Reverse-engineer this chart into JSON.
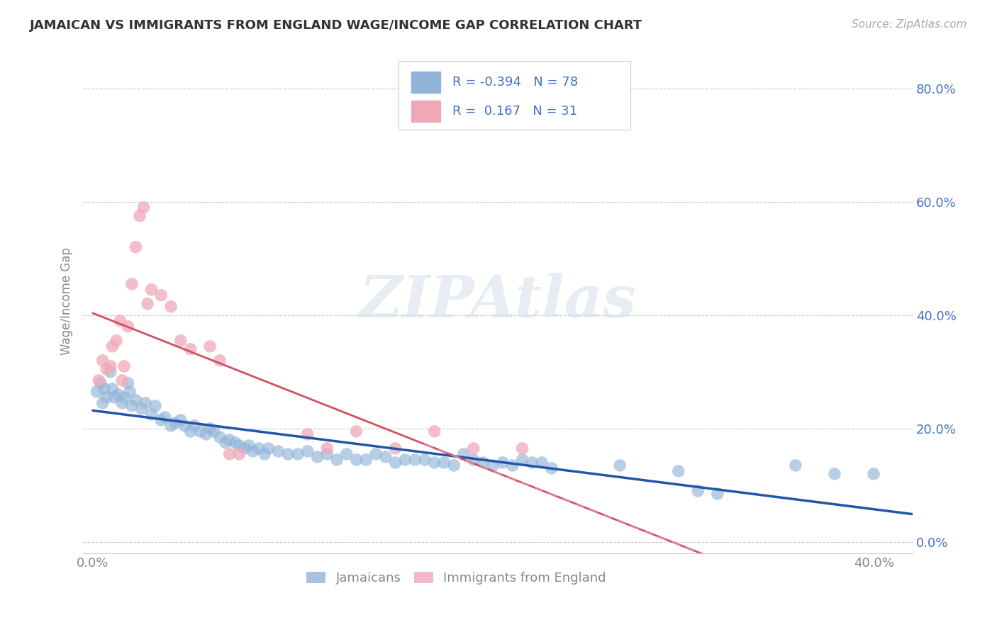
{
  "title": "JAMAICAN VS IMMIGRANTS FROM ENGLAND WAGE/INCOME GAP CORRELATION CHART",
  "source": "Source: ZipAtlas.com",
  "ylabel": "Wage/Income Gap",
  "watermark": "ZIPAtlas",
  "xlim": [
    -0.005,
    0.42
  ],
  "ylim": [
    -0.02,
    0.87
  ],
  "xticklabels": [
    "0.0%",
    "40.0%"
  ],
  "xtick_vals": [
    0.0,
    0.4
  ],
  "ytick_vals": [
    0.0,
    0.2,
    0.4,
    0.6,
    0.8
  ],
  "grid_color": "#bbbbbb",
  "background_color": "#ffffff",
  "title_color": "#333333",
  "axis_color": "#888888",
  "blue_color": "#92b4d8",
  "pink_color": "#f0a8b8",
  "blue_line_color": "#2255aa",
  "pink_line_color": "#d05060",
  "pink_dash_color": "#e08898",
  "legend_text_color": "#4472c4",
  "R_blue": -0.394,
  "N_blue": 78,
  "R_pink": 0.167,
  "N_pink": 31,
  "legend_label_blue": "Jamaicans",
  "legend_label_pink": "Immigrants from England",
  "blue_scatter": [
    [
      0.002,
      0.265
    ],
    [
      0.004,
      0.28
    ],
    [
      0.005,
      0.245
    ],
    [
      0.006,
      0.27
    ],
    [
      0.007,
      0.255
    ],
    [
      0.009,
      0.3
    ],
    [
      0.01,
      0.27
    ],
    [
      0.011,
      0.255
    ],
    [
      0.013,
      0.26
    ],
    [
      0.015,
      0.245
    ],
    [
      0.016,
      0.255
    ],
    [
      0.018,
      0.28
    ],
    [
      0.019,
      0.265
    ],
    [
      0.02,
      0.24
    ],
    [
      0.022,
      0.25
    ],
    [
      0.025,
      0.235
    ],
    [
      0.027,
      0.245
    ],
    [
      0.03,
      0.225
    ],
    [
      0.032,
      0.24
    ],
    [
      0.035,
      0.215
    ],
    [
      0.037,
      0.22
    ],
    [
      0.04,
      0.205
    ],
    [
      0.042,
      0.21
    ],
    [
      0.045,
      0.215
    ],
    [
      0.047,
      0.205
    ],
    [
      0.05,
      0.195
    ],
    [
      0.052,
      0.205
    ],
    [
      0.055,
      0.195
    ],
    [
      0.058,
      0.19
    ],
    [
      0.06,
      0.2
    ],
    [
      0.062,
      0.195
    ],
    [
      0.065,
      0.185
    ],
    [
      0.068,
      0.175
    ],
    [
      0.07,
      0.18
    ],
    [
      0.073,
      0.175
    ],
    [
      0.075,
      0.17
    ],
    [
      0.078,
      0.165
    ],
    [
      0.08,
      0.17
    ],
    [
      0.082,
      0.16
    ],
    [
      0.085,
      0.165
    ],
    [
      0.088,
      0.155
    ],
    [
      0.09,
      0.165
    ],
    [
      0.095,
      0.16
    ],
    [
      0.1,
      0.155
    ],
    [
      0.105,
      0.155
    ],
    [
      0.11,
      0.16
    ],
    [
      0.115,
      0.15
    ],
    [
      0.12,
      0.155
    ],
    [
      0.125,
      0.145
    ],
    [
      0.13,
      0.155
    ],
    [
      0.135,
      0.145
    ],
    [
      0.14,
      0.145
    ],
    [
      0.145,
      0.155
    ],
    [
      0.15,
      0.15
    ],
    [
      0.155,
      0.14
    ],
    [
      0.16,
      0.145
    ],
    [
      0.165,
      0.145
    ],
    [
      0.17,
      0.145
    ],
    [
      0.175,
      0.14
    ],
    [
      0.18,
      0.14
    ],
    [
      0.185,
      0.135
    ],
    [
      0.19,
      0.155
    ],
    [
      0.195,
      0.145
    ],
    [
      0.2,
      0.14
    ],
    [
      0.205,
      0.135
    ],
    [
      0.21,
      0.14
    ],
    [
      0.215,
      0.135
    ],
    [
      0.22,
      0.145
    ],
    [
      0.225,
      0.14
    ],
    [
      0.23,
      0.14
    ],
    [
      0.235,
      0.13
    ],
    [
      0.27,
      0.135
    ],
    [
      0.3,
      0.125
    ],
    [
      0.31,
      0.09
    ],
    [
      0.32,
      0.085
    ],
    [
      0.36,
      0.135
    ],
    [
      0.38,
      0.12
    ],
    [
      0.4,
      0.12
    ]
  ],
  "pink_scatter": [
    [
      0.003,
      0.285
    ],
    [
      0.005,
      0.32
    ],
    [
      0.007,
      0.305
    ],
    [
      0.009,
      0.31
    ],
    [
      0.01,
      0.345
    ],
    [
      0.012,
      0.355
    ],
    [
      0.014,
      0.39
    ],
    [
      0.015,
      0.285
    ],
    [
      0.016,
      0.31
    ],
    [
      0.018,
      0.38
    ],
    [
      0.02,
      0.455
    ],
    [
      0.022,
      0.52
    ],
    [
      0.024,
      0.575
    ],
    [
      0.026,
      0.59
    ],
    [
      0.028,
      0.42
    ],
    [
      0.03,
      0.445
    ],
    [
      0.035,
      0.435
    ],
    [
      0.04,
      0.415
    ],
    [
      0.045,
      0.355
    ],
    [
      0.05,
      0.34
    ],
    [
      0.06,
      0.345
    ],
    [
      0.065,
      0.32
    ],
    [
      0.07,
      0.155
    ],
    [
      0.075,
      0.155
    ],
    [
      0.11,
      0.19
    ],
    [
      0.12,
      0.165
    ],
    [
      0.135,
      0.195
    ],
    [
      0.155,
      0.165
    ],
    [
      0.175,
      0.195
    ],
    [
      0.195,
      0.165
    ],
    [
      0.22,
      0.165
    ]
  ]
}
